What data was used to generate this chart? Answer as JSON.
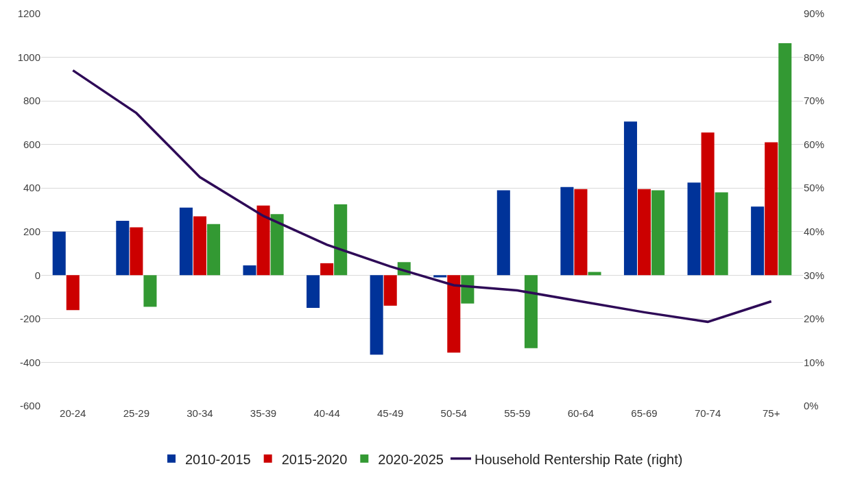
{
  "chart_data": {
    "type": "bar",
    "categories": [
      "20-24",
      "25-29",
      "30-34",
      "35-39",
      "40-44",
      "45-49",
      "50-54",
      "55-59",
      "60-64",
      "65-69",
      "70-74",
      "75+"
    ],
    "series": [
      {
        "name": "2010-2015",
        "color": "#003399",
        "values": [
          200,
          250,
          310,
          45,
          -150,
          -365,
          -10,
          390,
          405,
          705,
          425,
          315
        ]
      },
      {
        "name": "2015-2020",
        "color": "#cc0000",
        "values": [
          -160,
          220,
          270,
          320,
          55,
          -140,
          -355,
          null,
          395,
          395,
          655,
          610
        ]
      },
      {
        "name": "2020-2025",
        "color": "#339933",
        "values": [
          null,
          -145,
          235,
          280,
          325,
          60,
          -130,
          -335,
          15,
          390,
          380,
          1065
        ]
      },
      {
        "name": "Household Rentership Rate (right)",
        "type": "line",
        "axis": "y2",
        "color": "#2e0a57",
        "marker": "none",
        "line_style": "solid",
        "values": [
          77,
          67.2,
          52.5,
          43.6,
          37,
          32,
          27.7,
          26.5,
          24,
          21.5,
          19.3,
          24
        ]
      }
    ],
    "ylim": [
      -600,
      1200
    ],
    "yticks": [
      -600,
      -400,
      -200,
      0,
      200,
      400,
      600,
      800,
      1000,
      1200
    ],
    "y2lim": [
      0,
      90
    ],
    "y2ticks": [
      {
        "value": 0,
        "label": "0%"
      },
      {
        "value": 10,
        "label": "10%"
      },
      {
        "value": 20,
        "label": "20%"
      },
      {
        "value": 30,
        "label": "30%"
      },
      {
        "value": 40,
        "label": "40%"
      },
      {
        "value": 50,
        "label": "50%"
      },
      {
        "value": 60,
        "label": "60%"
      },
      {
        "value": 70,
        "label": "70%"
      },
      {
        "value": 80,
        "label": "80%"
      },
      {
        "value": 90,
        "label": "90%"
      }
    ],
    "grid": "y",
    "legend": "bottom"
  }
}
